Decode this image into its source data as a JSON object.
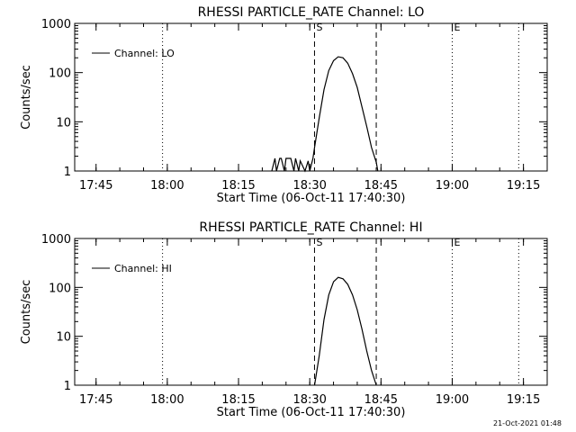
{
  "footer": {
    "timestamp": "21-Oct-2021 01:48"
  },
  "chart_data": [
    {
      "type": "line",
      "title": "RHESSI PARTICLE_RATE Channel: LO",
      "xlabel": "Start Time (06-Oct-11 17:40:30)",
      "ylabel": "Counts/sec",
      "y_scale": "log",
      "ylim": [
        1,
        1000
      ],
      "xlim": [
        "17:40:30",
        "19:20:00"
      ],
      "x_ticks": [
        "17:45",
        "18:00",
        "18:15",
        "18:30",
        "18:45",
        "19:00",
        "19:15"
      ],
      "y_ticks": [
        "1",
        "10",
        "100",
        "1000"
      ],
      "legend": {
        "placement": "top-left",
        "entries": [
          "Channel: LO"
        ]
      },
      "markers": [
        {
          "label": "S",
          "time": "18:31",
          "style": "dashed"
        },
        {
          "label": "",
          "time": "18:44",
          "style": "dashed"
        },
        {
          "label": "",
          "time": "17:59",
          "style": "dotted"
        },
        {
          "label": "E",
          "time": "19:00",
          "style": "dotted"
        },
        {
          "label": "",
          "time": "19:14",
          "style": "dotted"
        }
      ],
      "series": [
        {
          "x": [
            "18:22",
            "18:22:40",
            "18:23",
            "18:23:40",
            "18:24",
            "18:24:40",
            "18:25",
            "18:26",
            "18:26:40",
            "18:27",
            "18:27:40",
            "18:28",
            "18:29",
            "18:29:40",
            "18:30",
            "18:30:40",
            "18:31",
            "18:32",
            "18:33",
            "18:34",
            "18:35",
            "18:36",
            "18:37",
            "18:38",
            "18:39",
            "18:40",
            "18:41",
            "18:42",
            "18:43",
            "18:44",
            "18:44:20"
          ],
          "y": [
            1,
            1.8,
            1,
            1.8,
            1.8,
            1,
            1.8,
            1.8,
            1,
            1.8,
            1,
            1.6,
            1,
            1.6,
            1,
            1.8,
            3,
            12,
            45,
            110,
            175,
            210,
            200,
            155,
            95,
            50,
            20,
            8,
            3,
            1.5,
            1
          ]
        }
      ]
    },
    {
      "type": "line",
      "title": "RHESSI PARTICLE_RATE Channel: HI",
      "xlabel": "Start Time (06-Oct-11 17:40:30)",
      "ylabel": "Counts/sec",
      "y_scale": "log",
      "ylim": [
        1,
        1000
      ],
      "xlim": [
        "17:40:30",
        "19:20:00"
      ],
      "x_ticks": [
        "17:45",
        "18:00",
        "18:15",
        "18:30",
        "18:45",
        "19:00",
        "19:15"
      ],
      "y_ticks": [
        "1",
        "10",
        "100",
        "1000"
      ],
      "legend": {
        "placement": "top-left",
        "entries": [
          "Channel: HI"
        ]
      },
      "markers": [
        {
          "label": "S",
          "time": "18:31",
          "style": "dashed"
        },
        {
          "label": "",
          "time": "18:44",
          "style": "dashed"
        },
        {
          "label": "",
          "time": "17:59",
          "style": "dotted"
        },
        {
          "label": "E",
          "time": "19:00",
          "style": "dotted"
        },
        {
          "label": "",
          "time": "19:14",
          "style": "dotted"
        }
      ],
      "series": [
        {
          "x": [
            "18:31",
            "18:32",
            "18:33",
            "18:34",
            "18:35",
            "18:36",
            "18:37",
            "18:38",
            "18:39",
            "18:40",
            "18:41",
            "18:42",
            "18:43",
            "18:44"
          ],
          "y": [
            1,
            4,
            22,
            70,
            130,
            160,
            150,
            115,
            70,
            35,
            14,
            5,
            2,
            1
          ]
        }
      ]
    }
  ]
}
